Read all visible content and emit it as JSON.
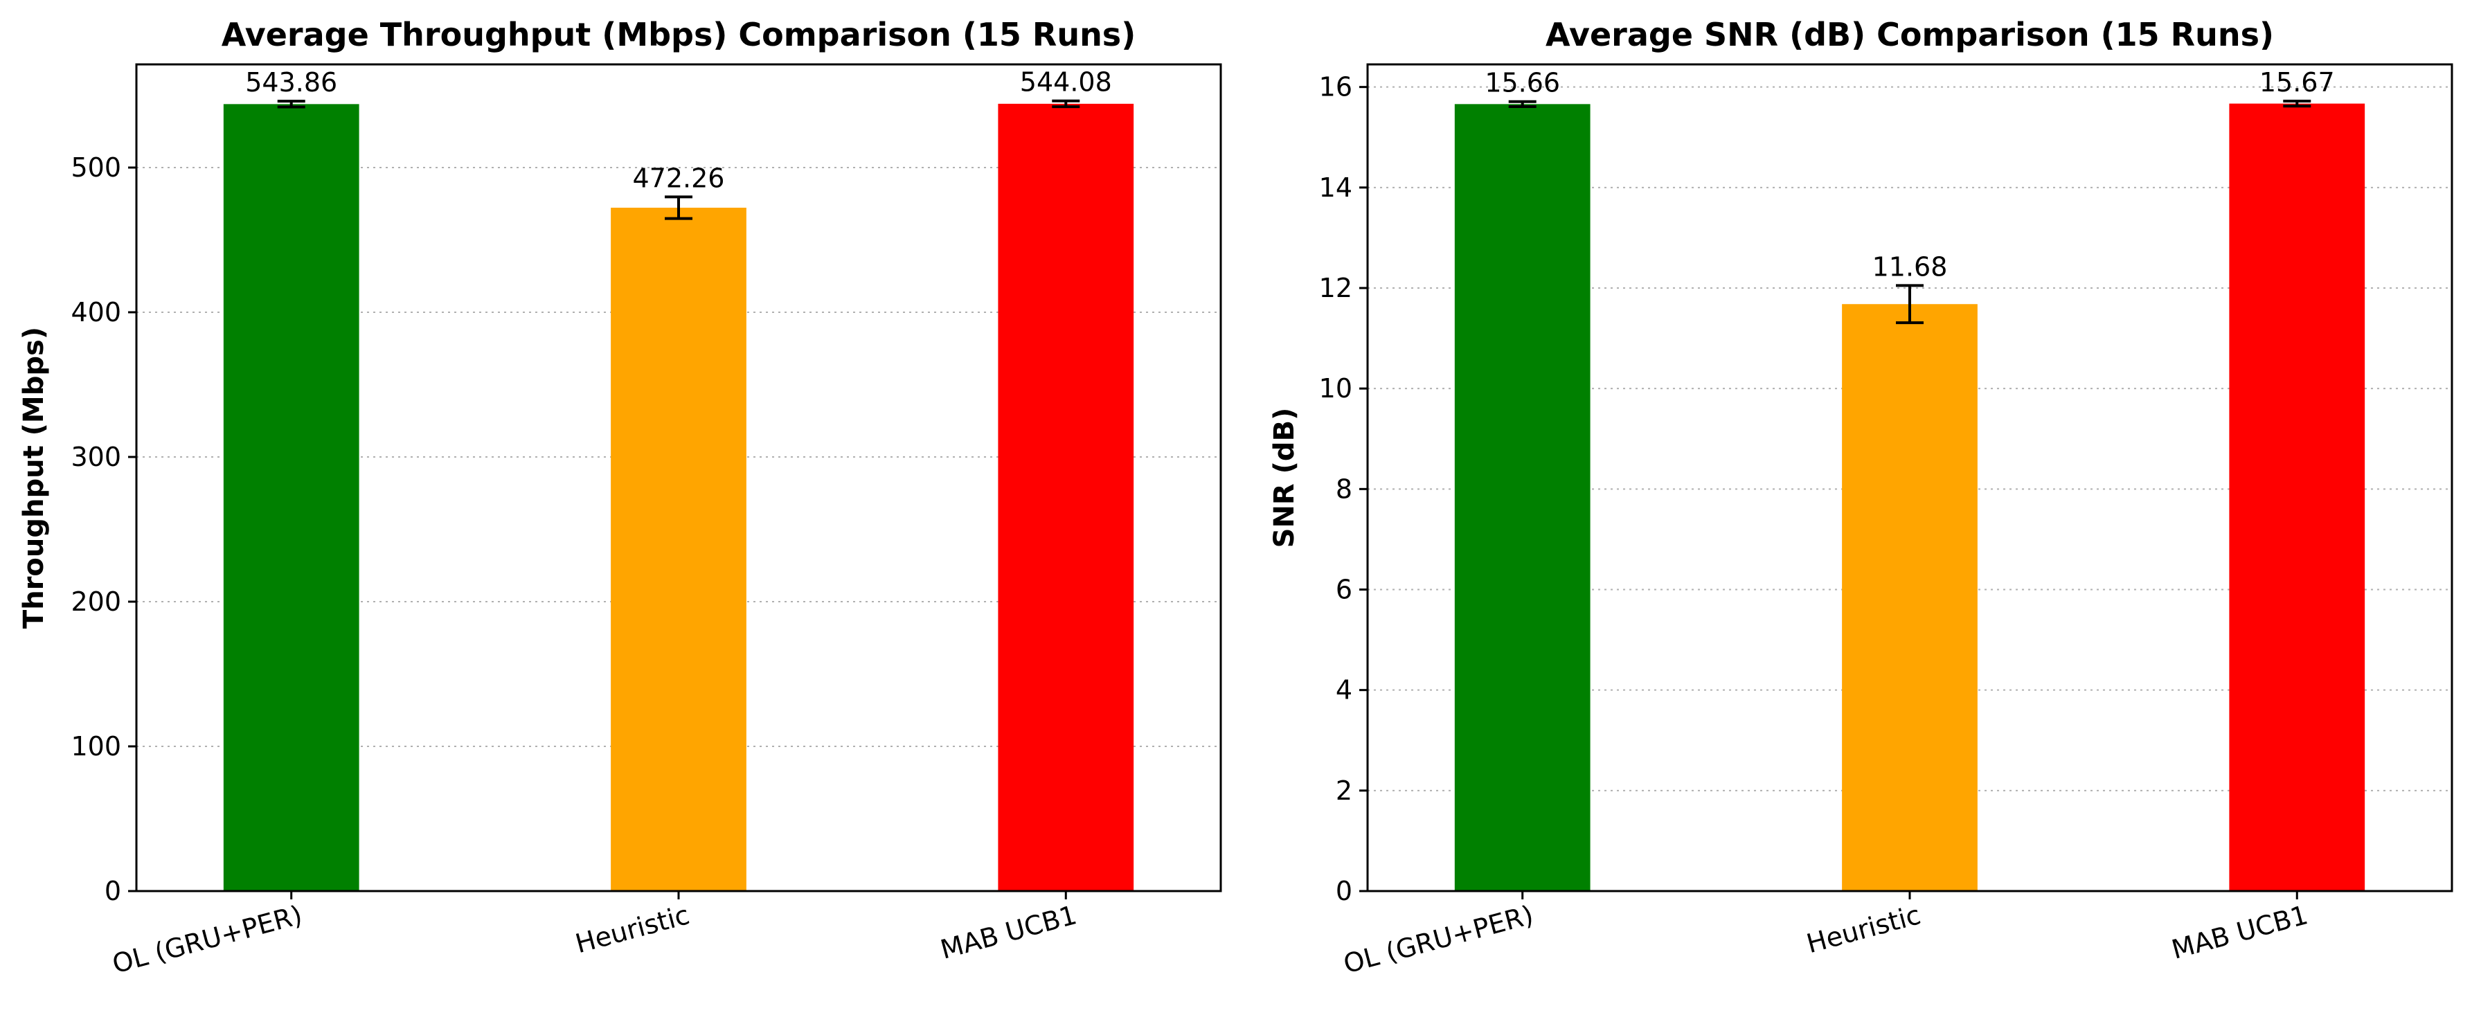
{
  "chart_data": [
    {
      "type": "bar",
      "title": "Average Throughput (Mbps) Comparison (15 Runs)",
      "xlabel": "",
      "ylabel": "Throughput (Mbps)",
      "categories": [
        "OL (GRU+PER)",
        "Heuristic",
        "MAB UCB1"
      ],
      "values": [
        543.86,
        472.26,
        544.08
      ],
      "errors": [
        2.0,
        7.5,
        2.0
      ],
      "data_labels": [
        "543.86",
        "472.26",
        "544.08"
      ],
      "colors": [
        "#008000",
        "#FFA500",
        "#FF0000"
      ],
      "ylim": [
        0,
        571.3
      ],
      "yticks": [
        0,
        100,
        200,
        300,
        400,
        500
      ],
      "grid": "y-dotted",
      "legend": "none"
    },
    {
      "type": "bar",
      "title": "Average SNR (dB) Comparison (15 Runs)",
      "xlabel": "",
      "ylabel": "SNR (dB)",
      "categories": [
        "OL (GRU+PER)",
        "Heuristic",
        "MAB UCB1"
      ],
      "values": [
        15.66,
        11.68,
        15.67
      ],
      "errors": [
        0.05,
        0.37,
        0.05
      ],
      "data_labels": [
        "15.66",
        "11.68",
        "15.67"
      ],
      "colors": [
        "#008000",
        "#FFA500",
        "#FF0000"
      ],
      "ylim": [
        0,
        16.45
      ],
      "yticks": [
        0,
        2,
        4,
        6,
        8,
        10,
        12,
        14,
        16
      ],
      "grid": "y-dotted",
      "legend": "none"
    }
  ]
}
